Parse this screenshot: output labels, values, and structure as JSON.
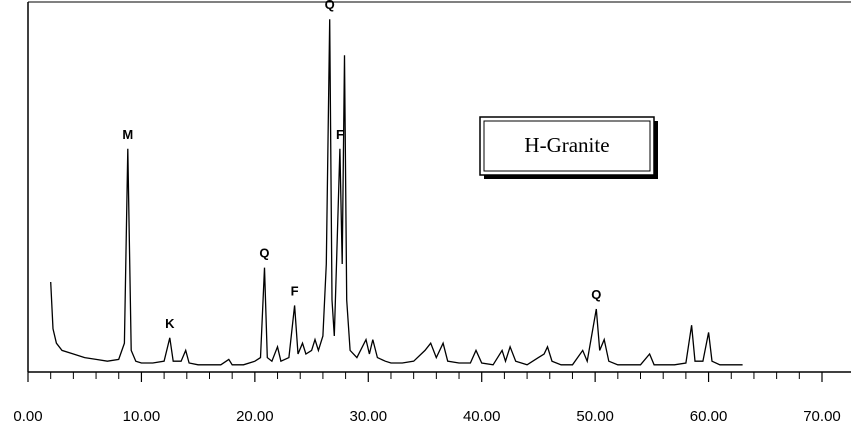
{
  "chart_data": {
    "type": "line",
    "x": [
      2.0,
      2.2,
      2.5,
      3,
      4,
      5,
      6,
      7,
      8,
      8.5,
      8.8,
      9.1,
      9.5,
      10,
      11,
      12,
      12.5,
      12.8,
      13.5,
      13.9,
      14.2,
      15,
      16,
      17,
      17.7,
      18,
      19,
      20,
      20.5,
      20.85,
      21.1,
      21.5,
      22,
      22.3,
      23,
      23.5,
      23.8,
      24.2,
      24.5,
      25,
      25.3,
      25.6,
      26,
      26.3,
      26.6,
      26.8,
      27.0,
      27.2,
      27.5,
      27.7,
      27.9,
      28.1,
      28.4,
      29,
      29.8,
      30.1,
      30.4,
      30.8,
      31.5,
      32,
      33,
      34,
      35,
      35.5,
      36,
      36.6,
      37,
      38,
      39,
      39.5,
      40,
      41,
      41.8,
      42.1,
      42.5,
      43,
      44,
      45,
      45.5,
      45.8,
      46.2,
      47,
      48,
      48.9,
      49.3,
      50.1,
      50.4,
      50.8,
      51.2,
      52,
      53,
      54,
      54.8,
      55.2,
      56,
      57,
      58,
      58.5,
      58.8,
      59.5,
      60,
      60.3,
      61,
      62,
      63
    ],
    "series": [
      {
        "name": "H-Granite",
        "color": "#000000",
        "values": [
          25,
          12,
          8,
          6,
          5,
          4,
          3.5,
          3,
          3.5,
          8,
          62,
          6,
          3,
          2.5,
          2.5,
          3,
          9.5,
          3,
          3,
          6,
          2.5,
          2,
          2,
          2,
          3.5,
          2,
          2,
          3,
          4,
          29,
          4,
          3,
          7,
          3,
          4,
          18.5,
          5,
          8,
          5,
          6,
          9,
          6,
          10,
          30,
          98,
          20,
          10,
          30,
          62,
          30,
          88,
          20,
          6,
          4,
          9,
          5,
          9,
          4,
          3,
          2.5,
          2.5,
          3,
          6,
          8,
          4,
          8,
          3,
          2.5,
          2.5,
          6,
          2.5,
          2,
          6,
          3,
          7,
          3,
          2,
          4,
          5,
          7,
          3,
          2,
          2,
          6,
          3,
          17.5,
          6,
          9,
          3,
          2,
          2,
          2,
          5,
          2,
          2,
          2,
          2.5,
          13,
          3,
          3,
          11,
          3,
          2,
          2,
          2
        ]
      }
    ],
    "xlim": [
      0,
      70
    ],
    "ylim": [
      0,
      100
    ],
    "xticks": [
      {
        "value": 0,
        "label": "0.00"
      },
      {
        "value": 10,
        "label": "10.00"
      },
      {
        "value": 20,
        "label": "20.00"
      },
      {
        "value": 30,
        "label": "30.00"
      },
      {
        "value": 40,
        "label": "40.00"
      },
      {
        "value": 50,
        "label": "50.00"
      },
      {
        "value": 60,
        "label": "60.00"
      },
      {
        "value": 70,
        "label": "70.00"
      }
    ],
    "xminorticks": [
      2,
      4,
      6,
      8,
      12,
      14,
      16,
      18,
      22,
      24,
      26,
      28,
      32,
      34,
      36,
      38,
      42,
      44,
      46,
      48,
      52,
      54,
      56,
      58,
      62,
      64,
      66,
      68
    ],
    "annotations": [
      {
        "text": "M",
        "x": 8.8
      },
      {
        "text": "K",
        "x": 12.5
      },
      {
        "text": "Q",
        "x": 20.85
      },
      {
        "text": "F",
        "x": 23.5
      },
      {
        "text": "Q",
        "x": 26.6
      },
      {
        "text": "F",
        "x": 27.5
      },
      {
        "text": "Q",
        "x": 50.1
      }
    ]
  }
}
